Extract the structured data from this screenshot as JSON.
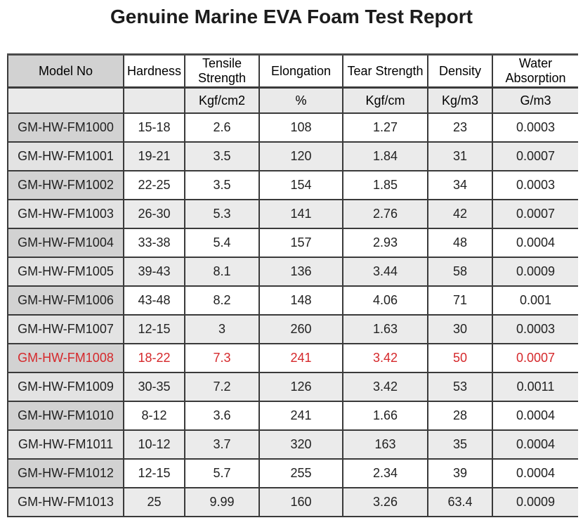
{
  "title": "Genuine Marine EVA Foam Test Report",
  "colors": {
    "highlight_text": "#d5282b",
    "header_model_bg": "#d2d2d2",
    "units_row_bg": "#eaeaea",
    "stripe_bg": "#ebebeb",
    "border": "#3a3a3a",
    "title_text": "#1c1c1c"
  },
  "table": {
    "fields": [
      "model",
      "hardness",
      "tensile",
      "elongation",
      "tear",
      "density",
      "water"
    ],
    "columns": [
      "Model No",
      "Hardness",
      "Tensile Strength",
      "Elongation",
      "Tear Strength",
      "Density",
      "Water Absorption"
    ],
    "units": [
      "",
      "",
      "Kgf/cm2",
      "%",
      "Kgf/cm",
      "Kg/m3",
      "G/m3"
    ],
    "highlighted_model": "GM-HW-FM1008",
    "highlight_color": "#d5282b",
    "rows": [
      {
        "model": "GM-HW-FM1000",
        "hardness": "15-18",
        "tensile": "2.6",
        "elongation": "108",
        "tear": "1.27",
        "density": "23",
        "water": "0.0003",
        "highlight": false
      },
      {
        "model": "GM-HW-FM1001",
        "hardness": "19-21",
        "tensile": "3.5",
        "elongation": "120",
        "tear": "1.84",
        "density": "31",
        "water": "0.0007",
        "highlight": false
      },
      {
        "model": "GM-HW-FM1002",
        "hardness": "22-25",
        "tensile": "3.5",
        "elongation": "154",
        "tear": "1.85",
        "density": "34",
        "water": "0.0003",
        "highlight": false
      },
      {
        "model": "GM-HW-FM1003",
        "hardness": "26-30",
        "tensile": "5.3",
        "elongation": "141",
        "tear": "2.76",
        "density": "42",
        "water": "0.0007",
        "highlight": false
      },
      {
        "model": "GM-HW-FM1004",
        "hardness": "33-38",
        "tensile": "5.4",
        "elongation": "157",
        "tear": "2.93",
        "density": "48",
        "water": "0.0004",
        "highlight": false
      },
      {
        "model": "GM-HW-FM1005",
        "hardness": "39-43",
        "tensile": "8.1",
        "elongation": "136",
        "tear": "3.44",
        "density": "58",
        "water": "0.0009",
        "highlight": false
      },
      {
        "model": "GM-HW-FM1006",
        "hardness": "43-48",
        "tensile": "8.2",
        "elongation": "148",
        "tear": "4.06",
        "density": "71",
        "water": "0.001",
        "highlight": false
      },
      {
        "model": "GM-HW-FM1007",
        "hardness": "12-15",
        "tensile": "3",
        "elongation": "260",
        "tear": "1.63",
        "density": "30",
        "water": "0.0003",
        "highlight": false
      },
      {
        "model": "GM-HW-FM1008",
        "hardness": "18-22",
        "tensile": "7.3",
        "elongation": "241",
        "tear": "3.42",
        "density": "50",
        "water": "0.0007",
        "highlight": true
      },
      {
        "model": "GM-HW-FM1009",
        "hardness": "30-35",
        "tensile": "7.2",
        "elongation": "126",
        "tear": "3.42",
        "density": "53",
        "water": "0.0011",
        "highlight": false
      },
      {
        "model": "GM-HW-FM1010",
        "hardness": "8-12",
        "tensile": "3.6",
        "elongation": "241",
        "tear": "1.66",
        "density": "28",
        "water": "0.0004",
        "highlight": false
      },
      {
        "model": "GM-HW-FM1011",
        "hardness": "10-12",
        "tensile": "3.7",
        "elongation": "320",
        "tear": "163",
        "density": "35",
        "water": "0.0004",
        "highlight": false
      },
      {
        "model": "GM-HW-FM1012",
        "hardness": "12-15",
        "tensile": "5.7",
        "elongation": "255",
        "tear": "2.34",
        "density": "39",
        "water": "0.0004",
        "highlight": false
      },
      {
        "model": "GM-HW-FM1013",
        "hardness": "25",
        "tensile": "9.99",
        "elongation": "160",
        "tear": "3.26",
        "density": "63.4",
        "water": "0.0009",
        "highlight": false
      }
    ]
  }
}
